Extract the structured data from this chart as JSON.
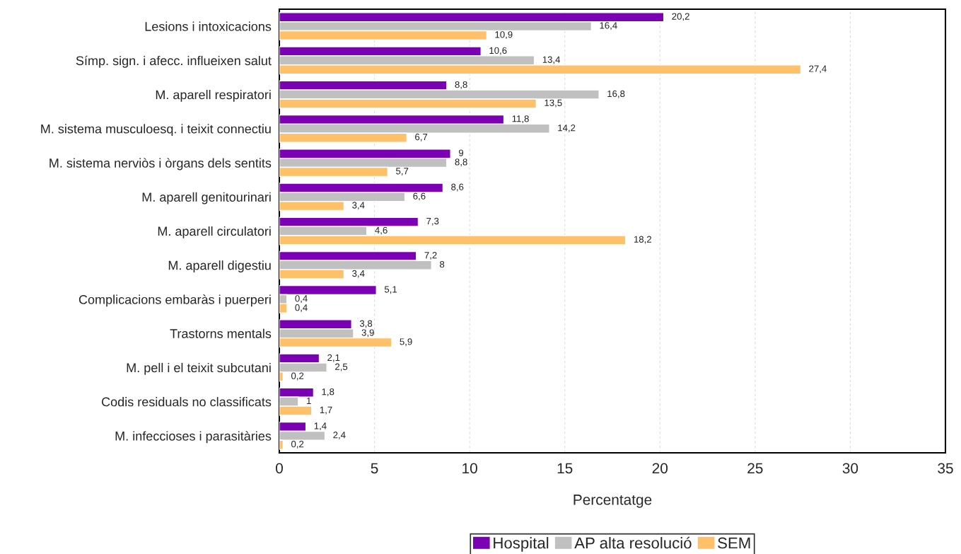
{
  "chart_data": {
    "type": "bar",
    "orientation": "horizontal",
    "xlabel": "Percentatge",
    "categories": [
      "Lesions i intoxicacions",
      "Símp. sign. i afecc. influeixen salut",
      "M. aparell respiratori",
      "M. sistema musculoesq. i teixit connectiu",
      "M. sistema nerviòs i òrgans dels sentits",
      "M. aparell genitourinari",
      "M. aparell circulatori",
      "M. aparell digestiu",
      "Complicacions embaràs i puerperi",
      "Trastorns mentals",
      "M. pell i el teixit subcutani",
      "Codis residuals no classificats",
      "M. infeccioses i parasitàries"
    ],
    "series": [
      {
        "name": "Hospital",
        "color": "#7b00b4",
        "values": [
          20.2,
          10.6,
          8.8,
          11.8,
          9,
          8.6,
          7.3,
          7.2,
          5.1,
          3.8,
          2.1,
          1.8,
          1.4
        ],
        "value_labels": [
          "20,2",
          "10,6",
          "8,8",
          "11,8",
          "9",
          "8,6",
          "7,3",
          "7,2",
          "5,1",
          "3,8",
          "2,1",
          "1,8",
          "1,4"
        ]
      },
      {
        "name": "AP alta resolució",
        "color": "#c0c0c0",
        "values": [
          16.4,
          13.4,
          16.8,
          14.2,
          8.8,
          6.6,
          4.6,
          8,
          0.4,
          3.9,
          2.5,
          1,
          2.4
        ],
        "value_labels": [
          "16,4",
          "13,4",
          "16,8",
          "14,2",
          "8,8",
          "6,6",
          "4,6",
          "8",
          "0,4",
          "3,9",
          "2,5",
          "1",
          "2,4"
        ]
      },
      {
        "name": "SEM",
        "color": "#ffc06a",
        "values": [
          10.9,
          27.4,
          13.5,
          6.7,
          5.7,
          3.4,
          18.2,
          3.4,
          0.4,
          5.9,
          0.2,
          1.7,
          0.2
        ],
        "value_labels": [
          "10,9",
          "27,4",
          "13,5",
          "6,7",
          "5,7",
          "3,4",
          "18,2",
          "3,4",
          "0,4",
          "5,9",
          "0,2",
          "1,7",
          "0,2"
        ]
      }
    ],
    "xlim": [
      0,
      35
    ],
    "xticks": [
      0,
      5,
      10,
      15,
      20,
      25,
      30,
      35
    ],
    "grid": "x",
    "legend": "bottom"
  }
}
